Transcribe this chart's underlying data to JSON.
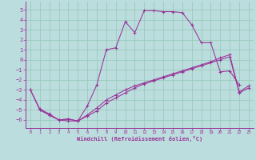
{
  "xlabel": "Windchill (Refroidissement éolien,°C)",
  "bg_color": "#bbdddd",
  "line_color": "#993399",
  "grid_color": "#99ccbb",
  "xlim": [
    -0.5,
    23.5
  ],
  "ylim": [
    -6.8,
    5.8
  ],
  "xticks": [
    0,
    1,
    2,
    3,
    4,
    5,
    6,
    7,
    8,
    9,
    10,
    11,
    12,
    13,
    14,
    15,
    16,
    17,
    18,
    19,
    20,
    21,
    22,
    23
  ],
  "yticks": [
    -6,
    -5,
    -4,
    -3,
    -2,
    -1,
    0,
    1,
    2,
    3,
    4,
    5
  ],
  "series": [
    {
      "x": [
        1,
        2,
        3,
        4,
        5,
        6,
        7,
        8,
        9,
        10,
        11,
        12,
        13,
        14,
        15,
        16,
        17,
        18,
        19,
        20,
        21,
        22
      ],
      "y": [
        -5.0,
        -5.5,
        -6.0,
        -6.1,
        -6.1,
        -4.6,
        -2.5,
        1.0,
        1.2,
        3.8,
        2.7,
        4.9,
        4.9,
        4.8,
        4.8,
        4.7,
        3.5,
        1.7,
        1.7,
        -1.2,
        -1.1,
        -2.5
      ]
    },
    {
      "x": [
        0,
        1,
        2,
        3,
        4,
        5,
        6,
        7,
        8,
        9,
        10,
        11,
        12,
        13,
        14,
        15,
        16,
        17,
        18,
        19,
        20,
        21,
        22,
        23
      ],
      "y": [
        -3.0,
        -5.0,
        -5.5,
        -6.0,
        -5.9,
        -6.1,
        -5.5,
        -4.8,
        -4.0,
        -3.5,
        -3.0,
        -2.6,
        -2.3,
        -2.0,
        -1.7,
        -1.4,
        -1.1,
        -0.8,
        -0.5,
        -0.2,
        0.2,
        0.5,
        -3.2,
        -2.6
      ]
    },
    {
      "x": [
        0,
        1,
        2,
        3,
        4,
        5,
        6,
        7,
        8,
        9,
        10,
        11,
        12,
        13,
        14,
        15,
        16,
        17,
        18,
        19,
        20,
        21,
        22,
        23
      ],
      "y": [
        -3.0,
        -4.9,
        -5.4,
        -6.0,
        -5.9,
        -6.1,
        -5.6,
        -5.1,
        -4.3,
        -3.8,
        -3.3,
        -2.8,
        -2.4,
        -2.1,
        -1.8,
        -1.5,
        -1.2,
        -0.9,
        -0.6,
        -0.3,
        0.0,
        0.3,
        -3.3,
        -2.8
      ]
    }
  ]
}
